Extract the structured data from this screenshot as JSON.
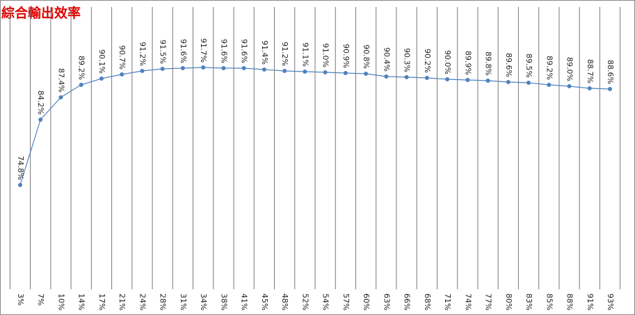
{
  "chart_data": {
    "type": "line",
    "title": "綜合輸出效率",
    "categories": [
      "3%",
      "7%",
      "10%",
      "14%",
      "17%",
      "21%",
      "24%",
      "28%",
      "31%",
      "34%",
      "38%",
      "41%",
      "45%",
      "48%",
      "52%",
      "54%",
      "57%",
      "60%",
      "63%",
      "66%",
      "68%",
      "71%",
      "74%",
      "77%",
      "80%",
      "83%",
      "85%",
      "88%",
      "91%",
      "93%"
    ],
    "series": [
      {
        "color": "#4f81bd",
        "values": [
          74.8,
          84.2,
          87.4,
          89.2,
          90.1,
          90.7,
          91.2,
          91.5,
          91.6,
          91.7,
          91.6,
          91.6,
          91.4,
          91.2,
          91.1,
          91.0,
          90.9,
          90.8,
          90.4,
          90.3,
          90.2,
          90.0,
          89.9,
          89.8,
          89.6,
          89.5,
          89.2,
          89.0,
          88.7,
          88.6
        ],
        "value_labels": [
          "74.8%",
          "84.2%",
          "87.4%",
          "89.2%",
          "90.1%",
          "90.7%",
          "91.2%",
          "91.5%",
          "91.6%",
          "91.7%",
          "91.6%",
          "91.6%",
          "91.4%",
          "91.2%",
          "91.1%",
          "91.0%",
          "90.9%",
          "90.8%",
          "90.4%",
          "90.3%",
          "90.2%",
          "90.0%",
          "89.9%",
          "89.8%",
          "89.6%",
          "89.5%",
          "89.2%",
          "89.0%",
          "88.7%",
          "88.6%"
        ]
      }
    ],
    "ylim": [
      60,
      100
    ]
  }
}
